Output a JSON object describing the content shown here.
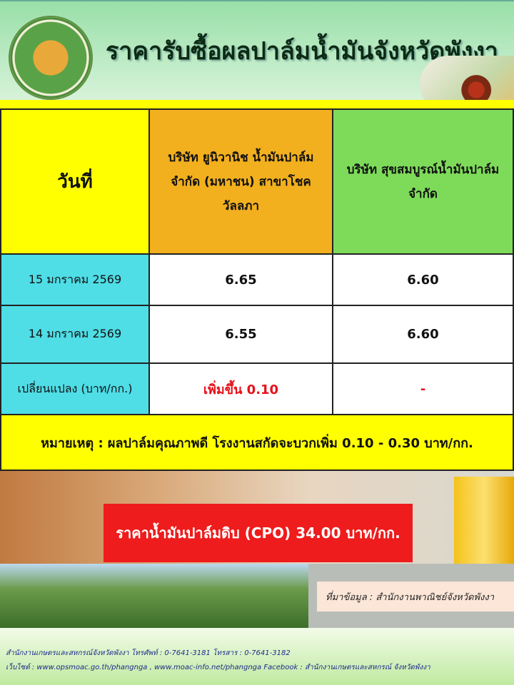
{
  "header": {
    "title": "ราคารับซื้อผลปาล์มน้ำมันจังหวัดพังงา",
    "seal_text": "กระทรวงเกษตรและสหกรณ์ MINISTRY OF AGRICULTURE AND COOPERATIVES"
  },
  "table": {
    "headers": [
      "วันที่",
      "บริษัท ยูนิวานิช น้ำมันปาล์ม จำกัด (มหาชน) สาขาโชควัลลภา",
      "บริษัท สุขสมบูรณ์น้ำมันปาล์ม จำกัด"
    ],
    "rows": [
      {
        "date": "15 มกราคม 2569",
        "univanich": "6.65",
        "suksomboon": "6.60"
      },
      {
        "date": "14 มกราคม 2569",
        "univanich": "6.55",
        "suksomboon": "6.60"
      },
      {
        "date": "เปลี่ยนแปลง (บาท/กก.)",
        "univanich": "เพิ่มขึ้น 0.10",
        "suksomboon": "-"
      }
    ]
  },
  "note": "หมายเหตุ : ผลปาล์มคุณภาพดี โรงงานสกัดจะบวกเพิ่ม 0.10 - 0.30 บาท/กก.",
  "cpo": "ราคาน้ำมันปาล์มดิบ (CPO) 34.00 บาท/กก.",
  "source": "ที่มาข้อมูล : สำนักงานพาณิชย์จังหวัดพังงา",
  "footer": {
    "line1": "สำนักงานเกษตรและสหกรณ์จังหวัดพังงา โทรศัพท์ : 0-7641-3181 โทรสาร : 0-7641-3182",
    "line2": "เว็บไซต์ : www.opsmoac.go.th/phangnga , www.moac-info.net/phangnga Facebook : สำนักงานเกษตรและสหกรณ์ จังหวัดพังงา"
  },
  "colors": {
    "yellow": "#ffff00",
    "orange": "#f2b01e",
    "green": "#7edb5a",
    "cyan": "#4fdde6",
    "red": "#ee1c1c"
  }
}
